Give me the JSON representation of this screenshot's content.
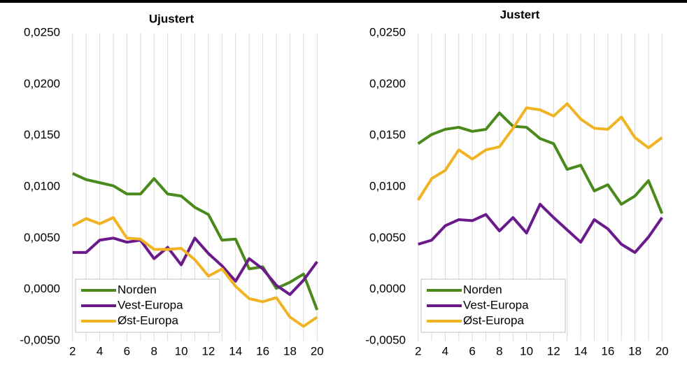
{
  "chart_data": [
    {
      "type": "line",
      "title": "Ujustert",
      "x": [
        2,
        3,
        4,
        5,
        6,
        7,
        8,
        9,
        10,
        11,
        12,
        13,
        14,
        15,
        16,
        17,
        18,
        19,
        20
      ],
      "xlim": [
        1.5,
        20.5
      ],
      "xticks": [
        2,
        4,
        6,
        8,
        10,
        12,
        14,
        16,
        18,
        20
      ],
      "x_minor_ticks": [
        3,
        5,
        7,
        9,
        11,
        13,
        15,
        17,
        19
      ],
      "ylim": [
        -0.005,
        0.025
      ],
      "yticks": [
        {
          "value": -0.005,
          "label": "-0,0050"
        },
        {
          "value": 0,
          "label": "0,0000"
        },
        {
          "value": 0.005,
          "label": "0,0050"
        },
        {
          "value": 0.01,
          "label": "0,0100"
        },
        {
          "value": 0.015,
          "label": "0,0150"
        },
        {
          "value": 0.02,
          "label": "0,0200"
        },
        {
          "value": 0.025,
          "label": "0,0250"
        }
      ],
      "grid": "x",
      "legend": "lower left",
      "series": [
        {
          "name": "Norden",
          "color": "#4a8a1c",
          "values": [
            0.0113,
            0.0107,
            0.0104,
            0.0101,
            0.0093,
            0.0093,
            0.0108,
            0.0093,
            0.0091,
            0.008,
            0.0073,
            0.0048,
            0.0049,
            0.002,
            0.0022,
            0.0001,
            0.0007,
            0.0015,
            -0.002
          ]
        },
        {
          "name": "Vest-Europa",
          "color": "#6a1a8a",
          "values": [
            0.0036,
            0.0036,
            0.0048,
            0.005,
            0.0046,
            0.0048,
            0.003,
            0.0041,
            0.0024,
            0.005,
            0.0035,
            0.0023,
            0.0008,
            0.003,
            0.002,
            0.0004,
            -0.0005,
            0.0009,
            0.0027
          ]
        },
        {
          "name": "Øst-Europa",
          "color": "#f0b323",
          "values": [
            0.0062,
            0.0069,
            0.0064,
            0.007,
            0.005,
            0.0049,
            0.0039,
            0.0039,
            0.004,
            0.0029,
            0.0013,
            0.002,
            0.0003,
            -0.0009,
            -0.0012,
            -0.0008,
            -0.0027,
            -0.0036,
            -0.0027
          ]
        }
      ]
    },
    {
      "type": "line",
      "title": "Justert",
      "x": [
        2,
        3,
        4,
        5,
        6,
        7,
        8,
        9,
        10,
        11,
        12,
        13,
        14,
        15,
        16,
        17,
        18,
        19,
        20
      ],
      "xlim": [
        1.5,
        20.5
      ],
      "xticks": [
        2,
        4,
        6,
        8,
        10,
        12,
        14,
        16,
        18,
        20
      ],
      "x_minor_ticks": [
        3,
        5,
        7,
        9,
        11,
        13,
        15,
        17,
        19
      ],
      "ylim": [
        -0.005,
        0.025
      ],
      "yticks": [
        {
          "value": -0.005,
          "label": "-0,0050"
        },
        {
          "value": 0,
          "label": "0,0000"
        },
        {
          "value": 0.005,
          "label": "0,0050"
        },
        {
          "value": 0.01,
          "label": "0,0100"
        },
        {
          "value": 0.015,
          "label": "0,0150"
        },
        {
          "value": 0.02,
          "label": "0,0200"
        },
        {
          "value": 0.025,
          "label": "0,0250"
        }
      ],
      "grid": "x",
      "legend": "lower left",
      "series": [
        {
          "name": "Norden",
          "color": "#4a8a1c",
          "values": [
            0.0142,
            0.0151,
            0.0156,
            0.0158,
            0.0154,
            0.0156,
            0.0172,
            0.0159,
            0.0158,
            0.0147,
            0.0142,
            0.0117,
            0.0121,
            0.0096,
            0.0102,
            0.0083,
            0.0091,
            0.0106,
            0.0074
          ]
        },
        {
          "name": "Vest-Europa",
          "color": "#6a1a8a",
          "values": [
            0.0044,
            0.0048,
            0.0062,
            0.0068,
            0.0067,
            0.0073,
            0.0057,
            0.007,
            0.0055,
            0.0083,
            0.007,
            0.0058,
            0.0046,
            0.0068,
            0.0059,
            0.0044,
            0.0036,
            0.0051,
            0.007
          ]
        },
        {
          "name": "Øst-Europa",
          "color": "#f0b323",
          "values": [
            0.0087,
            0.0108,
            0.0116,
            0.0136,
            0.0127,
            0.0136,
            0.0139,
            0.0157,
            0.0177,
            0.0175,
            0.0169,
            0.0181,
            0.0166,
            0.0157,
            0.0156,
            0.0168,
            0.0148,
            0.0138,
            0.0148
          ]
        }
      ]
    }
  ]
}
